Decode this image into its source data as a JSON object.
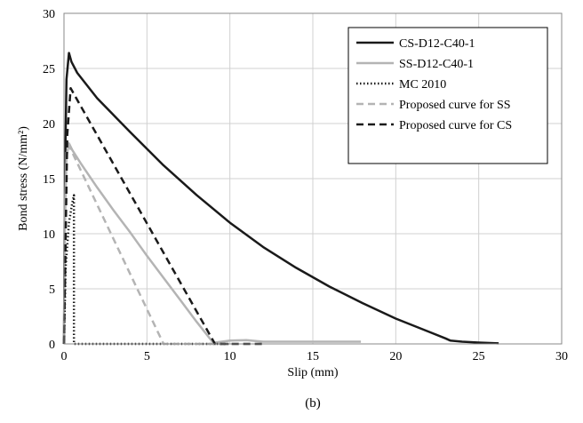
{
  "chart_data": {
    "type": "line",
    "caption": "(b)",
    "xlabel": "Slip (mm)",
    "ylabel": "Bond stress (N/mm²)",
    "xlim": [
      0,
      30
    ],
    "ylim": [
      0,
      30
    ],
    "xticks": [
      0,
      5,
      10,
      15,
      20,
      25,
      30
    ],
    "yticks": [
      0,
      5,
      10,
      15,
      20,
      25,
      30
    ],
    "grid": true,
    "legend_position": "top-right",
    "series": [
      {
        "name": "CS-D12-C40-1",
        "color": "#1a1a1a",
        "dash": "solid",
        "points": [
          [
            0,
            0
          ],
          [
            0.05,
            14
          ],
          [
            0.15,
            24
          ],
          [
            0.3,
            26.4
          ],
          [
            0.45,
            25.6
          ],
          [
            0.8,
            24.6
          ],
          [
            2,
            22.3
          ],
          [
            4,
            19.2
          ],
          [
            6,
            16.2
          ],
          [
            8,
            13.5
          ],
          [
            10,
            11.0
          ],
          [
            12,
            8.8
          ],
          [
            14,
            6.9
          ],
          [
            16,
            5.2
          ],
          [
            18,
            3.7
          ],
          [
            20,
            2.3
          ],
          [
            22,
            1.1
          ],
          [
            23,
            0.5
          ],
          [
            23.3,
            0.3
          ],
          [
            24,
            0.2
          ],
          [
            25,
            0.12
          ],
          [
            26.2,
            0.05
          ]
        ]
      },
      {
        "name": "SS-D12-C40-1",
        "color": "#b4b4b4",
        "dash": "solid",
        "points": [
          [
            0,
            0
          ],
          [
            0.05,
            10
          ],
          [
            0.15,
            17
          ],
          [
            0.3,
            18.2
          ],
          [
            0.5,
            17.6
          ],
          [
            1,
            16.4
          ],
          [
            2,
            14.2
          ],
          [
            3,
            12.1
          ],
          [
            4,
            10.1
          ],
          [
            5,
            8.0
          ],
          [
            6,
            6.0
          ],
          [
            7,
            4.0
          ],
          [
            8,
            2.0
          ],
          [
            9,
            0.1
          ],
          [
            10,
            0.3
          ],
          [
            11,
            0.35
          ],
          [
            12,
            0.2
          ],
          [
            14,
            0.2
          ],
          [
            16,
            0.2
          ],
          [
            17.9,
            0.2
          ]
        ]
      },
      {
        "name": "MC 2010",
        "color": "#1a1a1a",
        "dash": "dot",
        "points": [
          [
            0,
            0
          ],
          [
            0.1,
            7
          ],
          [
            0.3,
            11
          ],
          [
            0.5,
            12.8
          ],
          [
            0.6,
            13.5
          ],
          [
            0.6,
            0
          ],
          [
            0.8,
            0
          ],
          [
            2,
            0
          ],
          [
            4,
            0
          ],
          [
            6,
            0
          ],
          [
            8,
            0
          ],
          [
            10,
            0
          ]
        ]
      },
      {
        "name": "Proposed curve for SS",
        "color": "#b4b4b4",
        "dash": "dash",
        "points": [
          [
            0,
            0
          ],
          [
            0.15,
            17.5
          ],
          [
            0.3,
            18
          ],
          [
            6,
            0
          ],
          [
            10,
            0
          ]
        ]
      },
      {
        "name": "Proposed curve for CS",
        "color": "#1a1a1a",
        "dash": "dash",
        "points": [
          [
            0,
            0
          ],
          [
            0.2,
            19
          ],
          [
            0.4,
            23.2
          ],
          [
            9.1,
            0
          ],
          [
            12,
            0
          ]
        ]
      }
    ]
  }
}
